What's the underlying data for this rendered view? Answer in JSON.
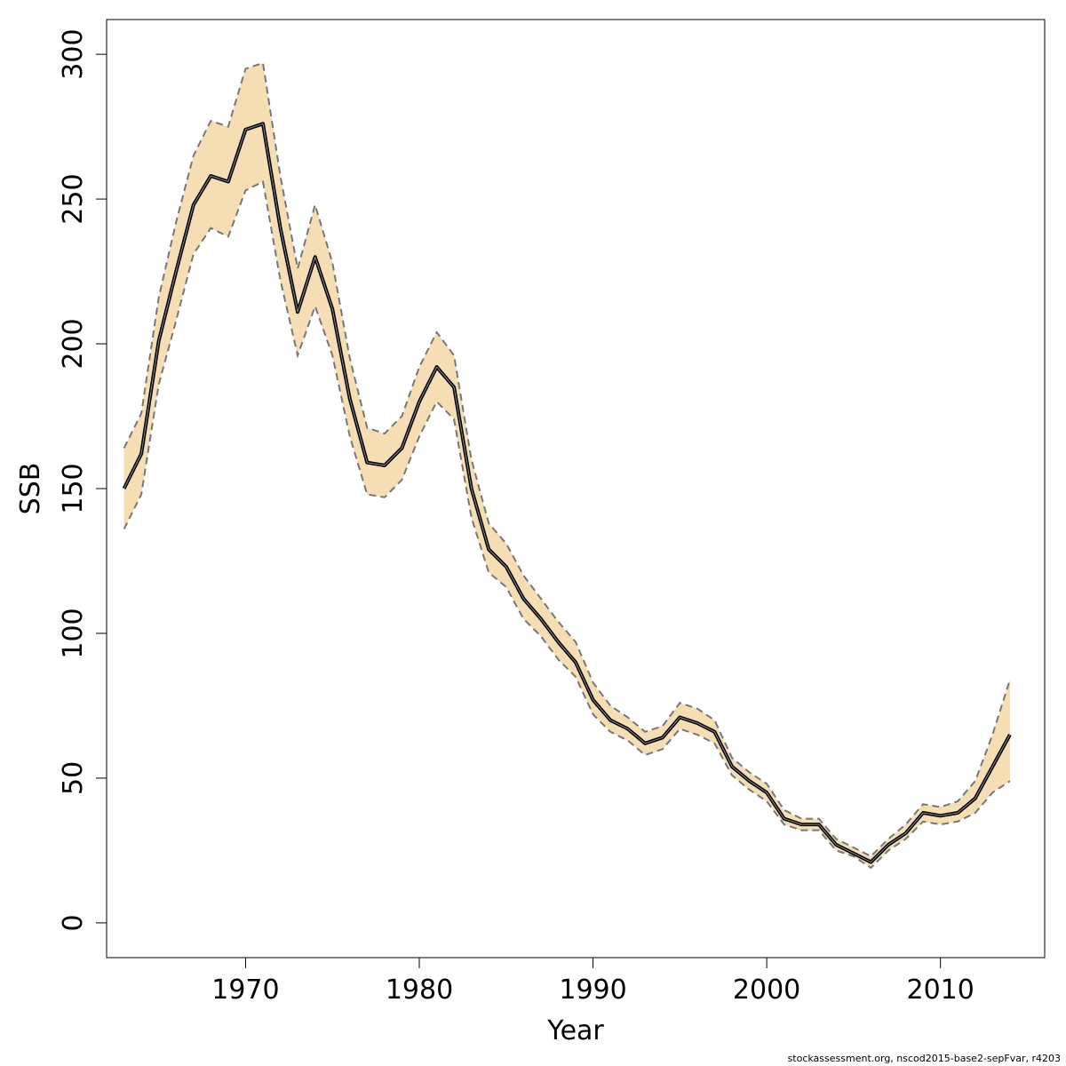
{
  "chart_data": {
    "type": "line",
    "title": "",
    "xlabel": "Year",
    "ylabel": "SSB",
    "xlim": [
      1962,
      2016
    ],
    "ylim": [
      -12,
      312
    ],
    "x_ticks": [
      1970,
      1980,
      1990,
      2000,
      2010
    ],
    "y_ticks": [
      0,
      50,
      100,
      150,
      200,
      250,
      300
    ],
    "grid": false,
    "legend": "none",
    "colors": {
      "band": "#f5deb3",
      "line": "#000000",
      "bound": "#777777"
    },
    "x": [
      1963,
      1964,
      1965,
      1966,
      1967,
      1968,
      1969,
      1970,
      1971,
      1972,
      1973,
      1974,
      1975,
      1976,
      1977,
      1978,
      1979,
      1980,
      1981,
      1982,
      1983,
      1984,
      1985,
      1986,
      1987,
      1988,
      1989,
      1990,
      1991,
      1992,
      1993,
      1994,
      1995,
      1996,
      1997,
      1998,
      1999,
      2000,
      2001,
      2002,
      2003,
      2004,
      2005,
      2006,
      2007,
      2008,
      2009,
      2010,
      2011,
      2012,
      2013,
      2014
    ],
    "series": [
      {
        "role": "estimate",
        "values": [
          150,
          162,
          201,
          225,
          248,
          258,
          256,
          274,
          276,
          240,
          211,
          230,
          212,
          181,
          159,
          158,
          164,
          180,
          192,
          185,
          150,
          129,
          123,
          112,
          105,
          97,
          90,
          77,
          70,
          67,
          62,
          64,
          71,
          69,
          66,
          54,
          49,
          45,
          36,
          34,
          34,
          27,
          24,
          21,
          27,
          31,
          38,
          37,
          38,
          43,
          54,
          65
        ]
      },
      {
        "role": "upper",
        "values": [
          164,
          176,
          216,
          242,
          265,
          277,
          275,
          295,
          297,
          258,
          226,
          248,
          228,
          195,
          171,
          169,
          175,
          192,
          204,
          196,
          160,
          138,
          131,
          120,
          112,
          104,
          97,
          83,
          75,
          71,
          66,
          68,
          76,
          74,
          70,
          57,
          52,
          48,
          39,
          36,
          36,
          29,
          26,
          23,
          29,
          34,
          41,
          40,
          42,
          49,
          65,
          84
        ]
      },
      {
        "role": "lower",
        "values": [
          136,
          148,
          186,
          208,
          231,
          240,
          237,
          253,
          256,
          222,
          196,
          213,
          196,
          168,
          148,
          147,
          153,
          168,
          180,
          174,
          140,
          121,
          116,
          105,
          99,
          91,
          85,
          72,
          66,
          63,
          58,
          60,
          67,
          65,
          62,
          51,
          46,
          42,
          34,
          32,
          32,
          25,
          23,
          19,
          25,
          29,
          35,
          34,
          35,
          38,
          45,
          49
        ]
      }
    ]
  },
  "footer_text": "stockassessment.org, nscod2015-base2-sepFvar, r4203"
}
